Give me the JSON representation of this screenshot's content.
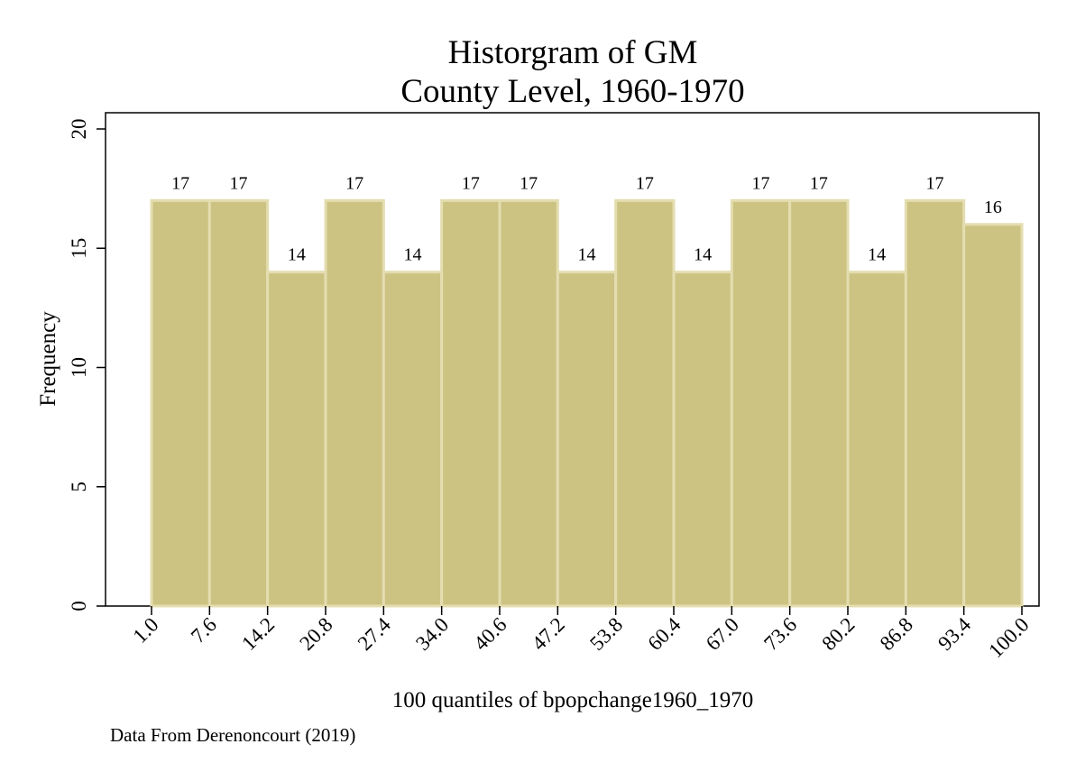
{
  "chart_data": {
    "type": "bar",
    "title": "Historgram of GM",
    "subtitle": "County Level, 1960-1970",
    "xlabel": "100 quantiles of bpopchange1960_1970",
    "ylabel": "Frequency",
    "note": "Data From Derenoncourt (2019)",
    "bin_edges": [
      1.0,
      7.6,
      14.2,
      20.8,
      27.4,
      34.0,
      40.6,
      47.2,
      53.8,
      60.4,
      67.0,
      73.6,
      80.2,
      86.8,
      93.4,
      100.0
    ],
    "x_tick_labels": [
      "1.0",
      "7.6",
      "14.2",
      "20.8",
      "27.4",
      "34.0",
      "40.6",
      "47.2",
      "53.8",
      "60.4",
      "67.0",
      "73.6",
      "80.2",
      "86.8",
      "93.4",
      "100.0"
    ],
    "values": [
      17,
      17,
      14,
      17,
      14,
      17,
      17,
      14,
      17,
      14,
      17,
      17,
      14,
      17,
      16
    ],
    "data_labels": [
      "17",
      "17",
      "14",
      "17",
      "14",
      "17",
      "17",
      "14",
      "17",
      "14",
      "17",
      "17",
      "14",
      "17",
      "16"
    ],
    "ylim": [
      0,
      20
    ],
    "y_ticks": [
      0,
      5,
      10,
      15,
      20
    ],
    "y_tick_labels": [
      "0",
      "5",
      "10",
      "15",
      "20"
    ],
    "grid": false,
    "legend": "none",
    "bar_color": "#ccc383",
    "bar_edge_color": "#e4ddb0",
    "axis_color": "#000000"
  }
}
